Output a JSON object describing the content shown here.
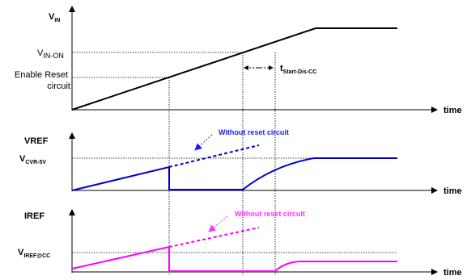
{
  "colors": {
    "axis": "#000000",
    "vref_trace": "#0000cc",
    "vref_annotation": "#1a1aff",
    "iref_trace": "#ff00ff",
    "iref_annotation": "#ff33ff"
  },
  "panels": {
    "vin": {
      "y_label": {
        "main": "V",
        "sub": "IN"
      },
      "level_vin_on": {
        "main": "V",
        "sub": "IN-ON"
      },
      "level_enable_reset": [
        "Enable Reset",
        "circuit"
      ],
      "delay": {
        "main": "t",
        "sub": "Start-Dis-CC"
      },
      "time_label": "time"
    },
    "vref": {
      "y_label": "VREF",
      "level": {
        "main": "V",
        "sub": "CVR-5V"
      },
      "annotation": "Without reset circuit",
      "time_label": "time"
    },
    "iref": {
      "y_label": "IREF",
      "level": {
        "main": "V",
        "sub": "IREF@CC"
      },
      "annotation": "Without reset circuit",
      "time_label": "time"
    }
  }
}
